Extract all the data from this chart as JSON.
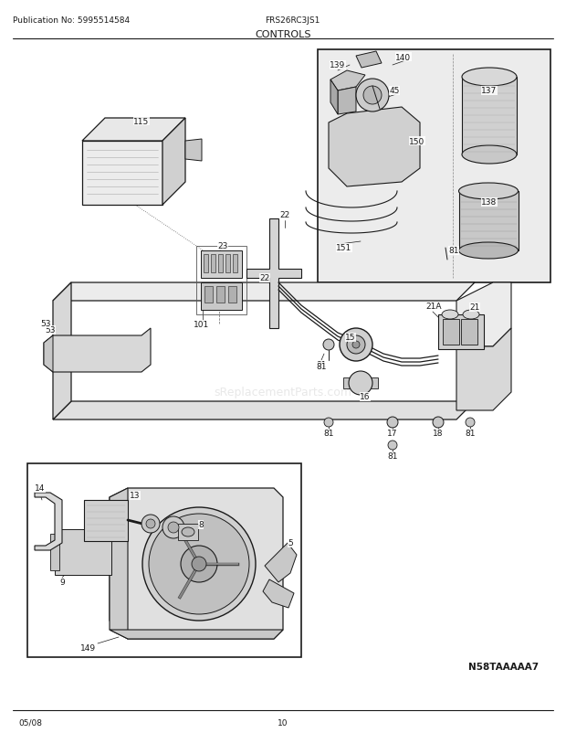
{
  "title": "CONTROLS",
  "pub_no": "Publication No: 5995514584",
  "model": "FRS26RC3JS1",
  "footer_left": "05/08",
  "footer_center": "10",
  "diagram_id": "N58TAAAAA7",
  "watermark": "sReplacementParts.com",
  "bg_color": "#ffffff",
  "line_color": "#1a1a1a",
  "gray_fill": "#d8d8d8",
  "gray_dark": "#b0b0b0",
  "gray_light": "#ececec",
  "fig_w": 6.2,
  "fig_h": 8.03,
  "dpi": 100
}
